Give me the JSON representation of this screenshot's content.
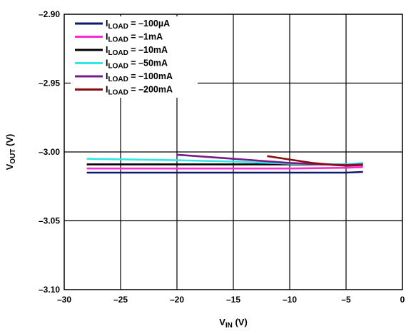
{
  "chart_data": {
    "type": "line",
    "xlabel": {
      "main": "V",
      "sub": "IN",
      "unit": " (V)"
    },
    "ylabel": {
      "main": "V",
      "sub": "OUT",
      "unit": " (V)"
    },
    "xlim": [
      -30,
      0
    ],
    "ylim": [
      -3.1,
      -2.9
    ],
    "x_ticks": [
      -30,
      -25,
      -20,
      -15,
      -10,
      -5,
      0
    ],
    "x_tick_labels": [
      "–30",
      "–25",
      "–20",
      "–15",
      "–10",
      "–5",
      "0"
    ],
    "y_ticks": [
      -2.9,
      -2.95,
      -3.0,
      -3.05,
      -3.1
    ],
    "y_tick_labels": [
      "–2.90",
      "–2.95",
      "–3.00",
      "–3.05",
      "–3.10"
    ],
    "grid": true,
    "legend_position": "top-left",
    "series": [
      {
        "name_main": "I",
        "name_sub": "LOAD",
        "name_value": " = –100µA",
        "color": "#0a1a6e",
        "points": [
          [
            -28,
            -3.015
          ],
          [
            -20,
            -3.015
          ],
          [
            -10,
            -3.015
          ],
          [
            -5,
            -3.015
          ],
          [
            -3.5,
            -3.0145
          ]
        ]
      },
      {
        "name_main": "I",
        "name_sub": "LOAD",
        "name_value": " = –1mA",
        "color": "#ff2ad4",
        "points": [
          [
            -28,
            -3.012
          ],
          [
            -20,
            -3.012
          ],
          [
            -10,
            -3.012
          ],
          [
            -5,
            -3.0115
          ],
          [
            -3.5,
            -3.011
          ]
        ]
      },
      {
        "name_main": "I",
        "name_sub": "LOAD",
        "name_value": " = –10mA",
        "color": "#000000",
        "points": [
          [
            -28,
            -3.009
          ],
          [
            -20,
            -3.009
          ],
          [
            -10,
            -3.009
          ],
          [
            -5,
            -3.009
          ],
          [
            -3.5,
            -3.0085
          ]
        ]
      },
      {
        "name_main": "I",
        "name_sub": "LOAD",
        "name_value": " = –50mA",
        "color": "#33e6e6",
        "points": [
          [
            -28,
            -3.005
          ],
          [
            -20,
            -3.006
          ],
          [
            -15,
            -3.007
          ],
          [
            -10,
            -3.0085
          ],
          [
            -5,
            -3.009
          ],
          [
            -3.5,
            -3.008
          ]
        ]
      },
      {
        "name_main": "I",
        "name_sub": "LOAD",
        "name_value": " = –100mA",
        "color": "#7a1a8a",
        "points": [
          [
            -20,
            -3.002
          ],
          [
            -15,
            -3.005
          ],
          [
            -10,
            -3.008
          ],
          [
            -7,
            -3.009
          ],
          [
            -5,
            -3.0095
          ],
          [
            -3.5,
            -3.009
          ]
        ]
      },
      {
        "name_main": "I",
        "name_sub": "LOAD",
        "name_value": " = –200mA",
        "color": "#8a0d0d",
        "points": [
          [
            -12,
            -3.003
          ],
          [
            -10,
            -3.0055
          ],
          [
            -8,
            -3.008
          ],
          [
            -6,
            -3.0095
          ],
          [
            -5,
            -3.01
          ],
          [
            -3.5,
            -3.0095
          ]
        ]
      }
    ]
  }
}
